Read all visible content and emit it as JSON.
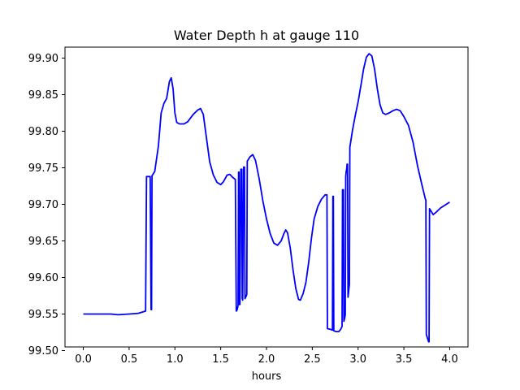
{
  "chart_data": {
    "type": "line",
    "title": "Water Depth h at gauge 110",
    "xlabel": "hours",
    "ylabel": "",
    "xlim": [
      -0.2,
      4.2
    ],
    "ylim": [
      99.505,
      99.915
    ],
    "grid": false,
    "x_ticks": [
      0.0,
      0.5,
      1.0,
      1.5,
      2.0,
      2.5,
      3.0,
      3.5,
      4.0
    ],
    "x_tick_labels": [
      "0.0",
      "0.5",
      "1.0",
      "1.5",
      "2.0",
      "2.5",
      "3.0",
      "3.5",
      "4.0"
    ],
    "y_ticks": [
      99.5,
      99.55,
      99.6,
      99.65,
      99.7,
      99.75,
      99.8,
      99.85,
      99.9
    ],
    "y_tick_labels": [
      "99.50",
      "99.55",
      "99.60",
      "99.65",
      "99.70",
      "99.75",
      "99.80",
      "99.85",
      "99.90"
    ],
    "series": [
      {
        "color": "#0000ff",
        "points": [
          [
            0.0,
            99.55
          ],
          [
            0.1,
            99.55
          ],
          [
            0.2,
            99.55
          ],
          [
            0.3,
            99.55
          ],
          [
            0.38,
            99.549
          ],
          [
            0.5,
            99.55
          ],
          [
            0.6,
            99.551
          ],
          [
            0.68,
            99.554
          ],
          [
            0.69,
            99.738
          ],
          [
            0.73,
            99.738
          ],
          [
            0.74,
            99.556
          ],
          [
            0.745,
            99.556
          ],
          [
            0.75,
            99.739
          ],
          [
            0.78,
            99.745
          ],
          [
            0.82,
            99.78
          ],
          [
            0.85,
            99.825
          ],
          [
            0.88,
            99.838
          ],
          [
            0.91,
            99.845
          ],
          [
            0.94,
            99.868
          ],
          [
            0.96,
            99.873
          ],
          [
            0.98,
            99.858
          ],
          [
            1.0,
            99.825
          ],
          [
            1.02,
            99.812
          ],
          [
            1.05,
            99.81
          ],
          [
            1.1,
            99.81
          ],
          [
            1.14,
            99.813
          ],
          [
            1.2,
            99.823
          ],
          [
            1.25,
            99.829
          ],
          [
            1.28,
            99.831
          ],
          [
            1.31,
            99.823
          ],
          [
            1.34,
            99.795
          ],
          [
            1.38,
            99.758
          ],
          [
            1.42,
            99.74
          ],
          [
            1.46,
            99.73
          ],
          [
            1.5,
            99.727
          ],
          [
            1.53,
            99.731
          ],
          [
            1.57,
            99.74
          ],
          [
            1.6,
            99.741
          ],
          [
            1.63,
            99.737
          ],
          [
            1.66,
            99.734
          ],
          [
            1.67,
            99.554
          ],
          [
            1.68,
            99.556
          ],
          [
            1.69,
            99.562
          ],
          [
            1.695,
            99.744
          ],
          [
            1.7,
            99.744
          ],
          [
            1.705,
            99.563
          ],
          [
            1.71,
            99.563
          ],
          [
            1.72,
            99.748
          ],
          [
            1.73,
            99.748
          ],
          [
            1.735,
            99.571
          ],
          [
            1.74,
            99.569
          ],
          [
            1.75,
            99.751
          ],
          [
            1.76,
            99.751
          ],
          [
            1.765,
            99.571
          ],
          [
            1.78,
            99.575
          ],
          [
            1.785,
            99.577
          ],
          [
            1.79,
            99.759
          ],
          [
            1.82,
            99.765
          ],
          [
            1.85,
            99.768
          ],
          [
            1.88,
            99.76
          ],
          [
            1.92,
            99.735
          ],
          [
            1.96,
            99.705
          ],
          [
            2.0,
            99.68
          ],
          [
            2.04,
            99.66
          ],
          [
            2.08,
            99.647
          ],
          [
            2.12,
            99.644
          ],
          [
            2.16,
            99.65
          ],
          [
            2.19,
            99.66
          ],
          [
            2.21,
            99.665
          ],
          [
            2.23,
            99.661
          ],
          [
            2.26,
            99.64
          ],
          [
            2.29,
            99.61
          ],
          [
            2.32,
            99.585
          ],
          [
            2.35,
            99.57
          ],
          [
            2.37,
            99.569
          ],
          [
            2.4,
            99.578
          ],
          [
            2.43,
            99.593
          ],
          [
            2.46,
            99.62
          ],
          [
            2.49,
            99.653
          ],
          [
            2.52,
            99.68
          ],
          [
            2.56,
            99.697
          ],
          [
            2.6,
            99.707
          ],
          [
            2.64,
            99.713
          ],
          [
            2.66,
            99.713
          ],
          [
            2.665,
            99.53
          ],
          [
            2.7,
            99.529
          ],
          [
            2.72,
            99.528
          ],
          [
            2.725,
            99.711
          ],
          [
            2.73,
            99.711
          ],
          [
            2.735,
            99.527
          ],
          [
            2.76,
            99.526
          ],
          [
            2.79,
            99.526
          ],
          [
            2.81,
            99.529
          ],
          [
            2.825,
            99.533
          ],
          [
            2.83,
            99.72
          ],
          [
            2.84,
            99.72
          ],
          [
            2.845,
            99.54
          ],
          [
            2.855,
            99.545
          ],
          [
            2.86,
            99.549
          ],
          [
            2.865,
            99.738
          ],
          [
            2.87,
            99.745
          ],
          [
            2.875,
            99.748
          ],
          [
            2.88,
            99.755
          ],
          [
            2.885,
            99.755
          ],
          [
            2.89,
            99.573
          ],
          [
            2.895,
            99.578
          ],
          [
            2.9,
            99.585
          ],
          [
            2.905,
            99.59
          ],
          [
            2.91,
            99.778
          ],
          [
            2.94,
            99.802
          ],
          [
            2.97,
            99.822
          ],
          [
            3.0,
            99.84
          ],
          [
            3.03,
            99.862
          ],
          [
            3.06,
            99.885
          ],
          [
            3.09,
            99.901
          ],
          [
            3.12,
            99.906
          ],
          [
            3.15,
            99.903
          ],
          [
            3.18,
            99.885
          ],
          [
            3.21,
            99.858
          ],
          [
            3.24,
            99.836
          ],
          [
            3.27,
            99.825
          ],
          [
            3.3,
            99.823
          ],
          [
            3.34,
            99.825
          ],
          [
            3.38,
            99.828
          ],
          [
            3.42,
            99.83
          ],
          [
            3.46,
            99.828
          ],
          [
            3.5,
            99.82
          ],
          [
            3.55,
            99.808
          ],
          [
            3.6,
            99.785
          ],
          [
            3.65,
            99.752
          ],
          [
            3.7,
            99.725
          ],
          [
            3.735,
            99.707
          ],
          [
            3.74,
            99.706
          ],
          [
            3.745,
            99.522
          ],
          [
            3.77,
            99.512
          ],
          [
            3.775,
            99.512
          ],
          [
            3.78,
            99.694
          ],
          [
            3.8,
            99.69
          ],
          [
            3.82,
            99.686
          ],
          [
            3.85,
            99.689
          ],
          [
            3.9,
            99.695
          ],
          [
            3.95,
            99.699
          ],
          [
            4.0,
            99.703
          ]
        ]
      }
    ]
  }
}
